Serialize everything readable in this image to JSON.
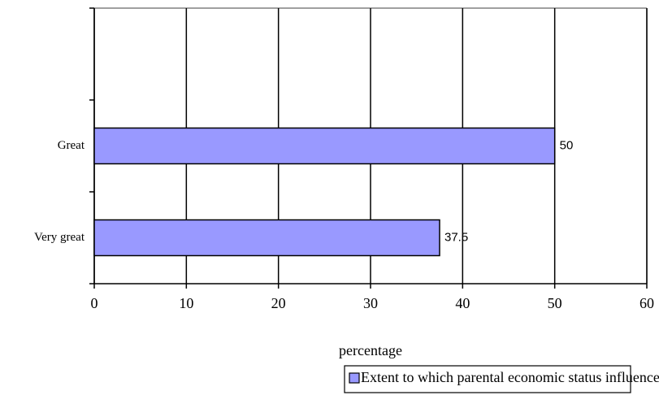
{
  "chart_data": {
    "type": "bar",
    "orientation": "horizontal",
    "categories": [
      "Very great",
      "Great",
      null
    ],
    "series": [
      {
        "name": "Extent to which parental economic status influences discipline of boys",
        "color": "#9999ff",
        "values": [
          37.5,
          50,
          null
        ]
      }
    ],
    "xlabel": "percentage",
    "xlim": [
      0,
      60
    ],
    "xticks": [
      0,
      10,
      20,
      30,
      40,
      50,
      60
    ],
    "grid": true,
    "legend": "bottom"
  }
}
